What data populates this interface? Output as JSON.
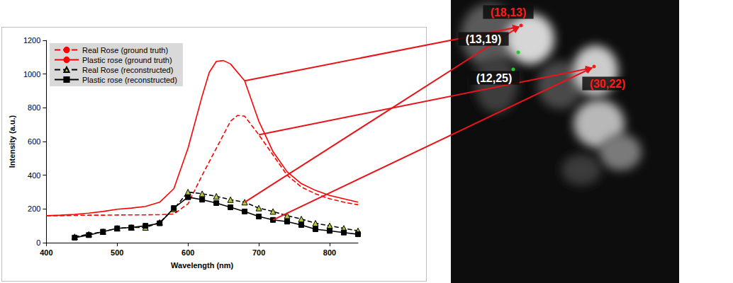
{
  "chart_data": {
    "type": "line",
    "x_label": "Wavelength (nm)",
    "y_label": "Intensity (a.u.)",
    "xlim": [
      400,
      840
    ],
    "xticks": [
      400,
      500,
      600,
      700,
      800
    ],
    "ylim": [
      0,
      1200
    ],
    "yticks": [
      0,
      200,
      400,
      600,
      800,
      1000,
      1200
    ],
    "grid": false,
    "legend": "upper left",
    "series": [
      {
        "name": "Real Rose (ground truth)",
        "color": "#ff0000",
        "line_style": "dashed",
        "marker": "none",
        "x": [
          400,
          420,
          440,
          460,
          480,
          500,
          520,
          540,
          560,
          580,
          600,
          620,
          640,
          660,
          670,
          680,
          700,
          720,
          740,
          760,
          780,
          800,
          820,
          840
        ],
        "values": [
          160,
          160,
          162,
          163,
          163,
          164,
          165,
          165,
          166,
          170,
          230,
          400,
          560,
          720,
          755,
          750,
          640,
          520,
          400,
          330,
          290,
          260,
          240,
          225
        ]
      },
      {
        "name": "Plastic rose (ground truth)",
        "color": "#ff0000",
        "line_style": "solid",
        "marker": "none",
        "x": [
          400,
          420,
          440,
          460,
          480,
          500,
          520,
          540,
          560,
          580,
          600,
          620,
          630,
          640,
          650,
          660,
          680,
          700,
          720,
          740,
          760,
          780,
          800,
          820,
          840
        ],
        "values": [
          160,
          163,
          168,
          175,
          185,
          198,
          205,
          215,
          240,
          320,
          560,
          870,
          1010,
          1075,
          1080,
          1060,
          960,
          720,
          540,
          420,
          350,
          310,
          280,
          260,
          240
        ]
      },
      {
        "name": "Real Rose (reconstructed)",
        "color": "#000000",
        "line_style": "dashed",
        "marker": "triangle",
        "x": [
          440,
          460,
          480,
          500,
          520,
          540,
          560,
          580,
          600,
          620,
          640,
          660,
          680,
          700,
          720,
          740,
          760,
          780,
          800,
          820,
          840
        ],
        "values": [
          35,
          50,
          65,
          85,
          90,
          90,
          120,
          200,
          300,
          290,
          275,
          255,
          240,
          205,
          185,
          160,
          140,
          115,
          100,
          85,
          70
        ]
      },
      {
        "name": "Plastic rose (reconstructed)",
        "color": "#000000",
        "line_style": "solid",
        "marker": "square",
        "x": [
          440,
          460,
          480,
          500,
          520,
          540,
          560,
          580,
          600,
          620,
          640,
          660,
          680,
          700,
          720,
          740,
          760,
          780,
          800,
          820,
          840
        ],
        "values": [
          30,
          45,
          65,
          85,
          90,
          100,
          115,
          205,
          270,
          255,
          235,
          210,
          185,
          155,
          135,
          125,
          105,
          80,
          70,
          60,
          50
        ]
      }
    ]
  },
  "image": {
    "points": [
      {
        "label": "(18,13)",
        "color": "#ff1a1a",
        "label_color": "#ff1a1a"
      },
      {
        "label": "(13,19)",
        "color": "#22cc22",
        "label_color": "#ffffff"
      },
      {
        "label": "(12,25)",
        "color": "#22cc22",
        "label_color": "#ffffff"
      },
      {
        "label": "(30,22)",
        "color": "#ff1a1a",
        "label_color": "#ff1a1a"
      }
    ]
  }
}
